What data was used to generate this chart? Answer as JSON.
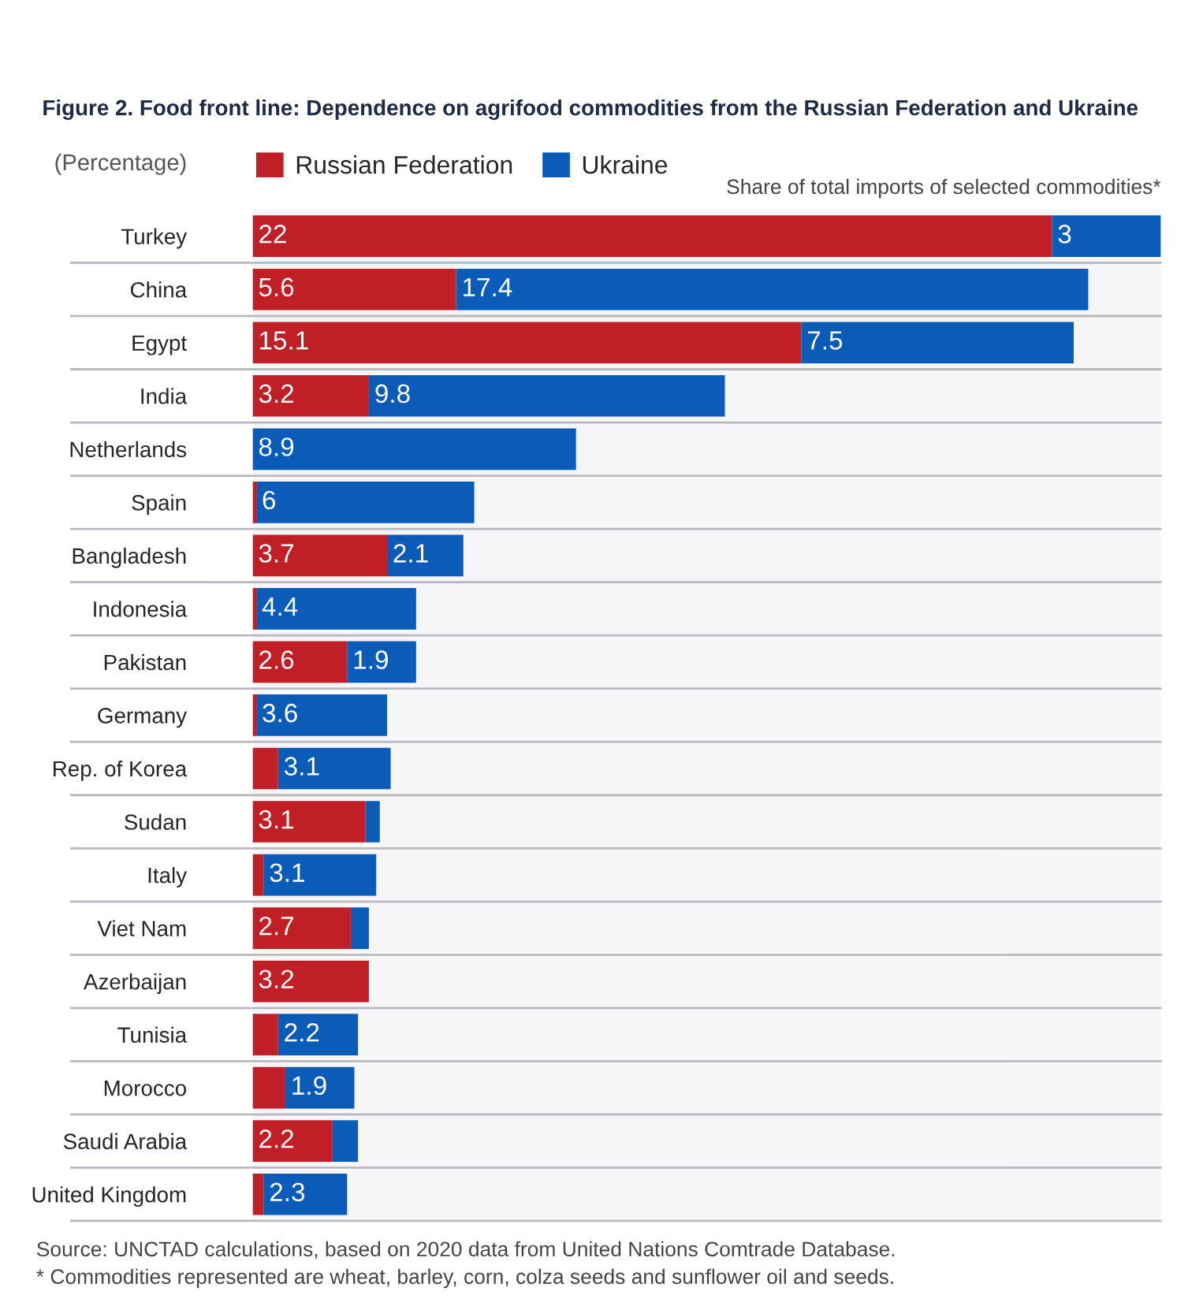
{
  "chart_data": {
    "type": "bar",
    "orientation": "horizontal",
    "stacked": true,
    "title": "Figure 2. Food front line: Dependence on agrifood commodities from the Russian Federation and Ukraine",
    "subtitle": "(Percentage)",
    "categories": [
      "Turkey",
      "China",
      "Egypt",
      "India",
      "Netherlands",
      "Spain",
      "Bangladesh",
      "Indonesia",
      "Pakistan",
      "Germany",
      "Rep. of Korea",
      "Sudan",
      "Italy",
      "Viet Nam",
      "Azerbaijan",
      "Tunisia",
      "Morocco",
      "Saudi Arabia",
      "United Kingdom"
    ],
    "series": [
      {
        "name": "Russian Federation",
        "color": "#c01f26",
        "values": [
          22,
          5.6,
          15.1,
          3.2,
          0,
          0.1,
          3.7,
          0.1,
          2.6,
          0.1,
          0.7,
          3.1,
          0.3,
          2.7,
          3.2,
          0.7,
          0.9,
          2.2,
          0.3
        ],
        "value_labels": [
          "22",
          "5.6",
          "15.1",
          "3.2",
          null,
          null,
          "3.7",
          null,
          "2.6",
          null,
          null,
          "3.1",
          null,
          "2.7",
          "3.2",
          null,
          null,
          "2.2",
          null
        ]
      },
      {
        "name": "Ukraine",
        "color": "#0b5cb8",
        "values": [
          3,
          17.4,
          7.5,
          9.8,
          8.9,
          6,
          2.1,
          4.4,
          1.9,
          3.6,
          3.1,
          0.4,
          3.1,
          0.5,
          0,
          2.2,
          1.9,
          0.7,
          2.3
        ],
        "value_labels": [
          "3",
          "17.4",
          "7.5",
          "9.8",
          "8.9",
          "6",
          "2.1",
          "4.4",
          "1.9",
          "3.6",
          "3.1",
          null,
          "3.1",
          null,
          null,
          "2.2",
          "1.9",
          null,
          "2.3"
        ]
      }
    ],
    "legend": "top left",
    "grid": false,
    "tick_labels": "y",
    "annotations": [
      "Share of total imports of selected commodities*",
      "Source: UNCTAD calculations, based on 2020 data from United Nations Comtrade Database.",
      "* Commodities represented are wheat, barley, corn, colza seeds and sunflower oil and seeds."
    ]
  }
}
